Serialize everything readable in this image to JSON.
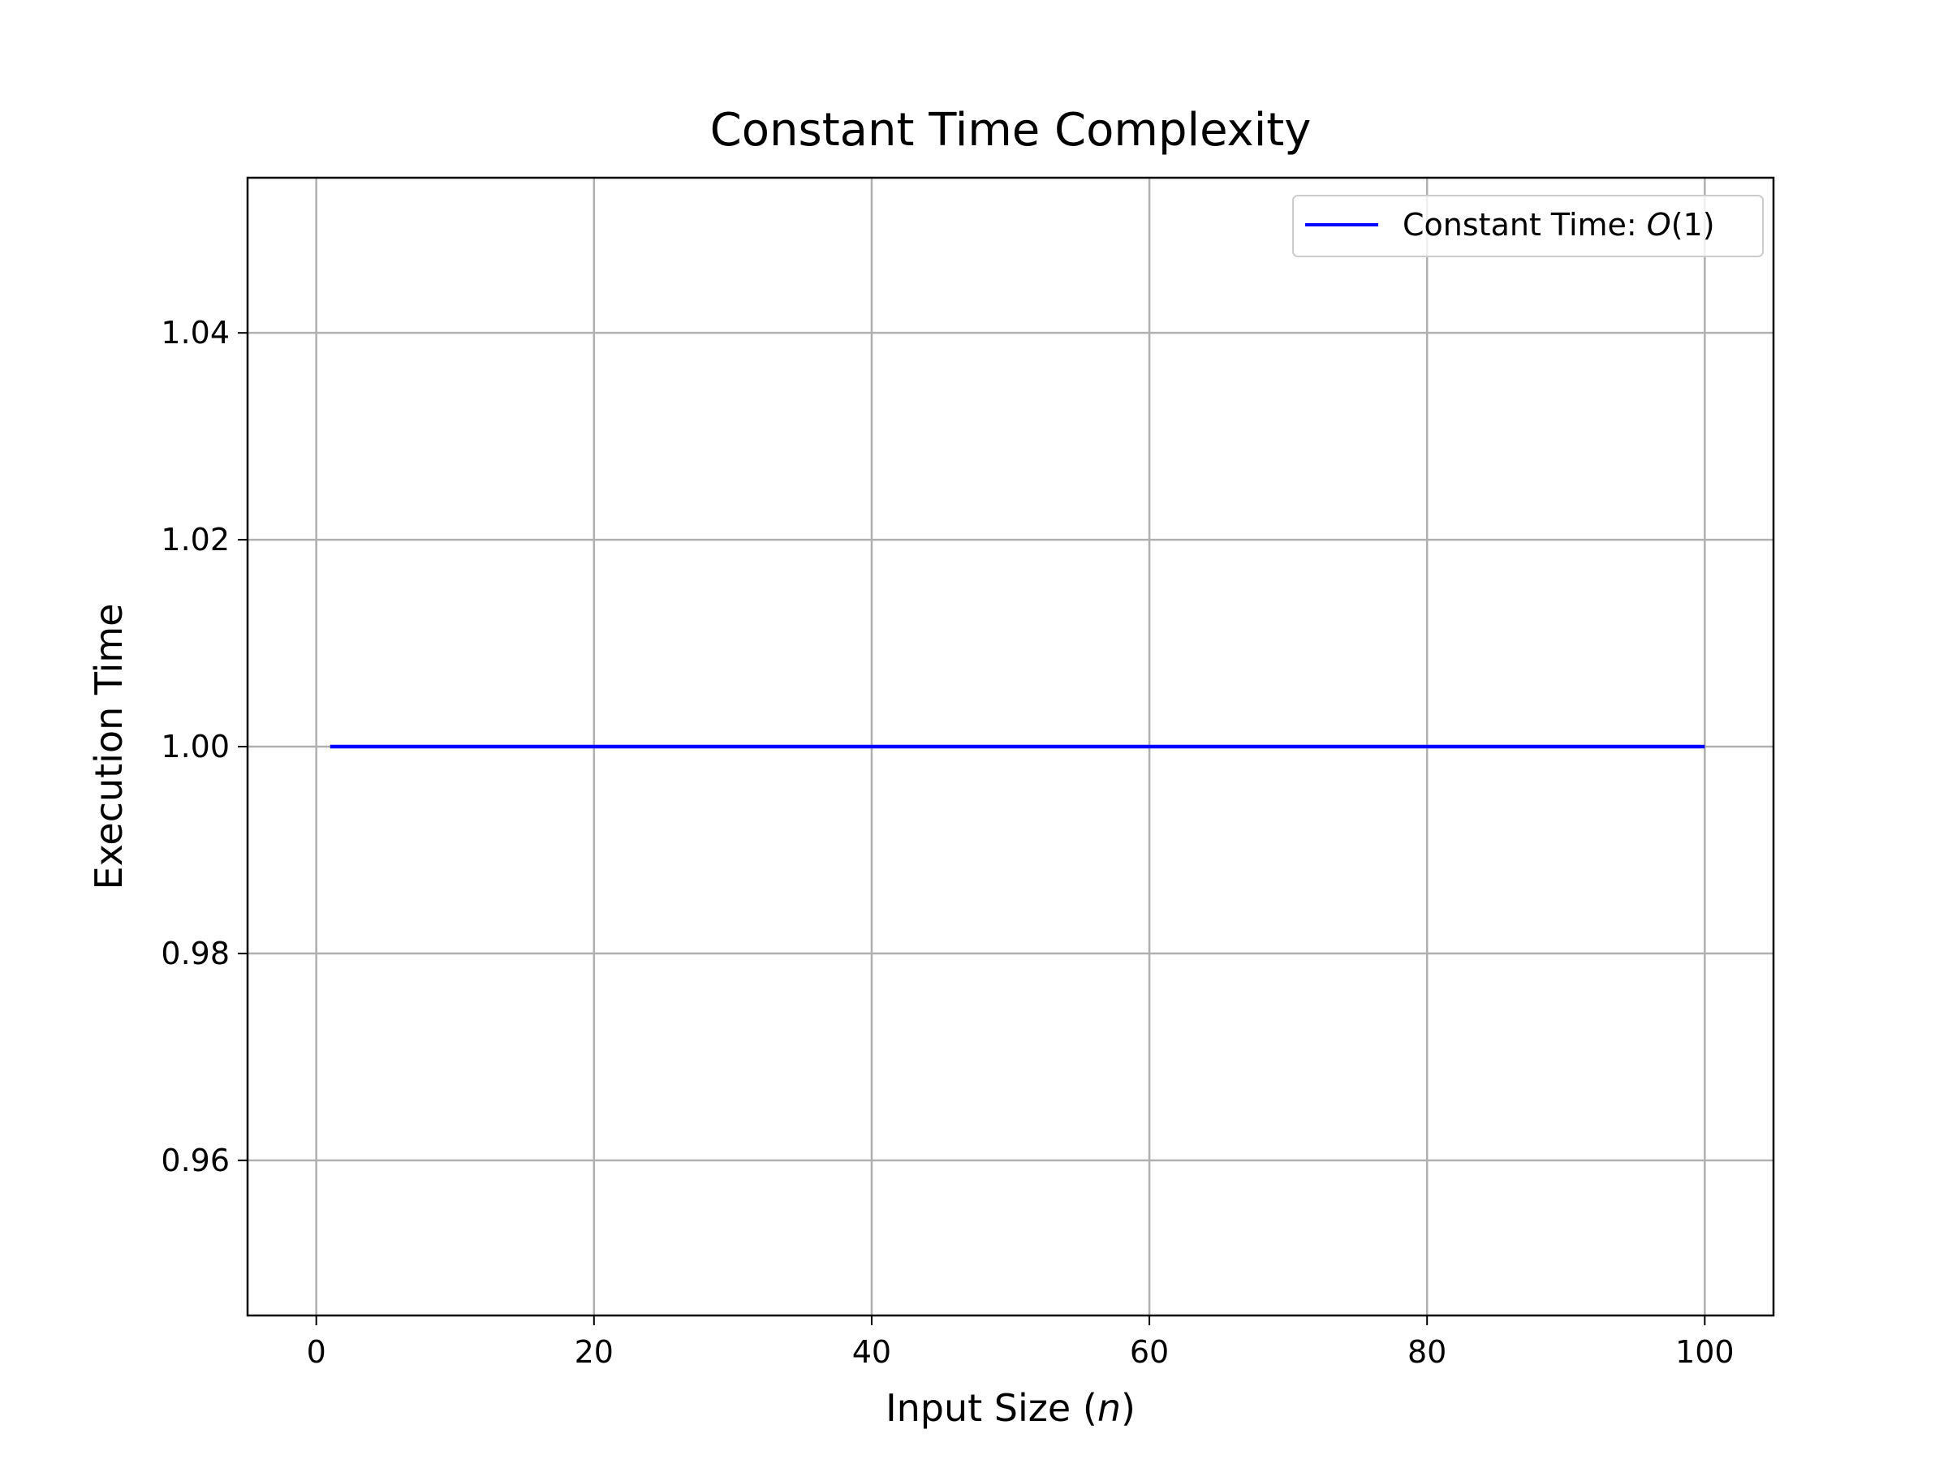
{
  "chart_data": {
    "type": "line",
    "title": "Constant Time Complexity",
    "xlabel": "Input Size (n)",
    "xlabel_parts": {
      "prefix": "Input Size (",
      "var": "n",
      "suffix": ")"
    },
    "ylabel": "Execution Time",
    "xlim": [
      -4.95,
      104.95
    ],
    "ylim": [
      0.945,
      1.055
    ],
    "x_ticks": [
      0,
      20,
      40,
      60,
      80,
      100
    ],
    "x_tick_labels": [
      "0",
      "20",
      "40",
      "60",
      "80",
      "100"
    ],
    "y_ticks": [
      0.96,
      0.98,
      1.0,
      1.02,
      1.04
    ],
    "y_tick_labels": [
      "0.96",
      "0.98",
      "1.00",
      "1.02",
      "1.04"
    ],
    "grid": true,
    "legend_position": "top-right",
    "series": [
      {
        "name": "Constant Time: O(1)",
        "name_parts": {
          "prefix": "Constant Time: ",
          "var": "O",
          "suffix": "(1)"
        },
        "color": "#0000ff",
        "x": [
          1,
          100
        ],
        "y": [
          1.0,
          1.0
        ]
      }
    ]
  }
}
